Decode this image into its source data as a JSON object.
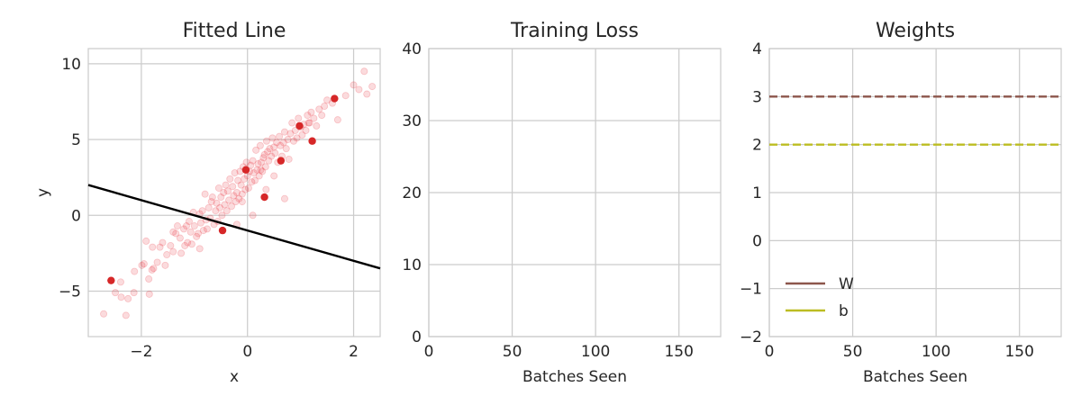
{
  "chart_data": [
    {
      "type": "scatter",
      "title": "Fitted Line",
      "xlabel": "x",
      "ylabel": "y",
      "xlim": [
        -3.0,
        2.5
      ],
      "ylim": [
        -8.0,
        11.0
      ],
      "xticks": [
        -2,
        0,
        2
      ],
      "yticks": [
        -5,
        0,
        5,
        10
      ],
      "xtick_labels": [
        "−2",
        "0",
        "2"
      ],
      "ytick_labels": [
        "−5",
        "0",
        "5",
        "10"
      ],
      "grid": true,
      "colors": {
        "points": "#e8212d",
        "highlight": "#d62728",
        "line": "#000000"
      },
      "series": [
        {
          "role": "data-points",
          "x": [
            -2.71,
            -2.49,
            -2.39,
            -2.38,
            -2.29,
            -2.25,
            -2.14,
            -2.13,
            -1.99,
            -1.95,
            -1.91,
            -1.86,
            -1.85,
            -1.8,
            -1.79,
            -1.77,
            -1.7,
            -1.65,
            -1.6,
            -1.55,
            -1.52,
            -1.45,
            -1.4,
            -1.4,
            -1.35,
            -1.32,
            -1.27,
            -1.2,
            -1.18,
            -1.15,
            -1.13,
            -1.1,
            -1.07,
            -1.05,
            -1.02,
            -1.0,
            -0.96,
            -0.93,
            -0.9,
            -0.88,
            -0.85,
            -0.83,
            -0.8,
            -0.78,
            -0.76,
            -0.73,
            -0.7,
            -0.68,
            -0.66,
            -0.63,
            -0.6,
            -0.58,
            -0.56,
            -0.54,
            -0.52,
            -0.5,
            -0.48,
            -0.45,
            -0.43,
            -0.41,
            -0.39,
            -0.37,
            -0.35,
            -0.33,
            -0.3,
            -0.28,
            -0.26,
            -0.24,
            -0.22,
            -0.2,
            -0.18,
            -0.16,
            -0.14,
            -0.12,
            -0.1,
            -0.08,
            -0.06,
            -0.04,
            -0.02,
            0.0,
            0.02,
            0.04,
            0.06,
            0.08,
            0.1,
            0.12,
            0.14,
            0.16,
            0.18,
            0.2,
            0.22,
            0.24,
            0.26,
            0.28,
            0.3,
            0.32,
            0.34,
            0.36,
            0.38,
            0.4,
            0.42,
            0.45,
            0.47,
            0.5,
            0.52,
            0.55,
            0.57,
            0.6,
            0.62,
            0.65,
            0.68,
            0.7,
            0.73,
            0.76,
            0.78,
            0.81,
            0.84,
            0.87,
            0.9,
            0.93,
            0.96,
            1.0,
            1.03,
            1.06,
            1.1,
            1.13,
            1.17,
            1.2,
            1.25,
            1.3,
            1.35,
            1.4,
            1.45,
            1.5,
            1.6,
            1.7,
            1.85,
            2.0,
            2.1,
            2.2,
            2.25,
            2.35,
            -0.2,
            0.1,
            0.35,
            -0.9,
            -0.1,
            0.5,
            0.7,
            1.15,
            -1.25,
            0.25
          ],
          "y": [
            -6.5,
            -5.1,
            -4.4,
            -5.4,
            -6.6,
            -5.5,
            -5.1,
            -3.7,
            -3.3,
            -3.2,
            -1.7,
            -4.2,
            -5.2,
            -3.6,
            -2.1,
            -3.5,
            -3.1,
            -2.1,
            -1.8,
            -3.3,
            -2.6,
            -2.0,
            -1.1,
            -2.4,
            -1.2,
            -0.7,
            -1.5,
            -0.9,
            -2.0,
            -0.7,
            -1.8,
            -0.4,
            -1.1,
            -1.9,
            0.2,
            -0.7,
            -1.4,
            -1.2,
            0.1,
            -0.5,
            0.3,
            -1.0,
            1.4,
            -0.3,
            -0.9,
            0.5,
            -0.2,
            0.9,
            1.2,
            -0.6,
            0.3,
            0.8,
            -0.4,
            1.8,
            0.5,
            1.2,
            0.0,
            1.5,
            0.7,
            2.0,
            0.3,
            1.6,
            1.0,
            2.4,
            0.6,
            1.9,
            1.3,
            2.8,
            0.9,
            1.5,
            2.3,
            1.1,
            2.9,
            2.0,
            1.4,
            3.2,
            2.4,
            1.7,
            3.5,
            2.6,
            1.8,
            2.9,
            3.3,
            2.2,
            3.6,
            2.8,
            2.3,
            4.3,
            3.0,
            3.4,
            2.6,
            4.6,
            3.5,
            2.9,
            3.8,
            4.0,
            3.2,
            4.9,
            4.2,
            3.6,
            4.4,
            3.9,
            5.1,
            4.5,
            4.1,
            4.8,
            3.5,
            5.2,
            4.6,
            3.9,
            4.8,
            5.5,
            4.4,
            5.0,
            3.7,
            5.4,
            6.1,
            4.9,
            5.6,
            5.1,
            6.4,
            5.8,
            5.3,
            6.0,
            5.6,
            6.6,
            6.1,
            6.8,
            6.4,
            5.9,
            7.0,
            6.6,
            7.2,
            7.6,
            7.4,
            6.3,
            7.9,
            8.6,
            8.3,
            9.5,
            8.0,
            8.5,
            -0.6,
            0.0,
            1.7,
            -2.2,
            0.9,
            2.6,
            1.1,
            6.1,
            -2.5,
            3.0
          ]
        },
        {
          "role": "highlighted-points",
          "x": [
            -2.57,
            -0.47,
            -0.03,
            0.32,
            0.63,
            0.98,
            1.22,
            1.64
          ],
          "y": [
            -4.3,
            -1.0,
            3.0,
            1.2,
            3.6,
            5.9,
            4.9,
            7.7
          ]
        },
        {
          "role": "fitted-line",
          "x": [
            -3.0,
            2.5
          ],
          "y": [
            2.0,
            -3.5
          ]
        }
      ]
    },
    {
      "type": "line",
      "title": "Training Loss",
      "xlabel": "Batches Seen",
      "ylabel": "",
      "xlim": [
        0,
        175
      ],
      "ylim": [
        0,
        40
      ],
      "xticks": [
        0,
        50,
        100,
        150
      ],
      "yticks": [
        0,
        10,
        20,
        30,
        40
      ],
      "xtick_labels": [
        "0",
        "50",
        "100",
        "150"
      ],
      "ytick_labels": [
        "0",
        "10",
        "20",
        "30",
        "40"
      ],
      "grid": true,
      "series": []
    },
    {
      "type": "line",
      "title": "Weights",
      "xlabel": "Batches Seen",
      "ylabel": "",
      "xlim": [
        0,
        175
      ],
      "ylim": [
        -2,
        4
      ],
      "xticks": [
        0,
        50,
        100,
        150
      ],
      "yticks": [
        -2,
        -1,
        0,
        1,
        2,
        3,
        4
      ],
      "xtick_labels": [
        "0",
        "50",
        "100",
        "150"
      ],
      "ytick_labels": [
        "−2",
        "−1",
        "0",
        "1",
        "2",
        "3",
        "4"
      ],
      "grid": true,
      "legend_position": "lower-left",
      "reference_lines": [
        {
          "y": 3.0,
          "color": "#8c564b",
          "style": "dashed"
        },
        {
          "y": 2.0,
          "color": "#bcbd22",
          "style": "dashed"
        }
      ],
      "series": [
        {
          "name": "W",
          "color": "#8c564b",
          "x": [],
          "y": []
        },
        {
          "name": "b",
          "color": "#bcbd22",
          "x": [],
          "y": []
        }
      ]
    }
  ]
}
